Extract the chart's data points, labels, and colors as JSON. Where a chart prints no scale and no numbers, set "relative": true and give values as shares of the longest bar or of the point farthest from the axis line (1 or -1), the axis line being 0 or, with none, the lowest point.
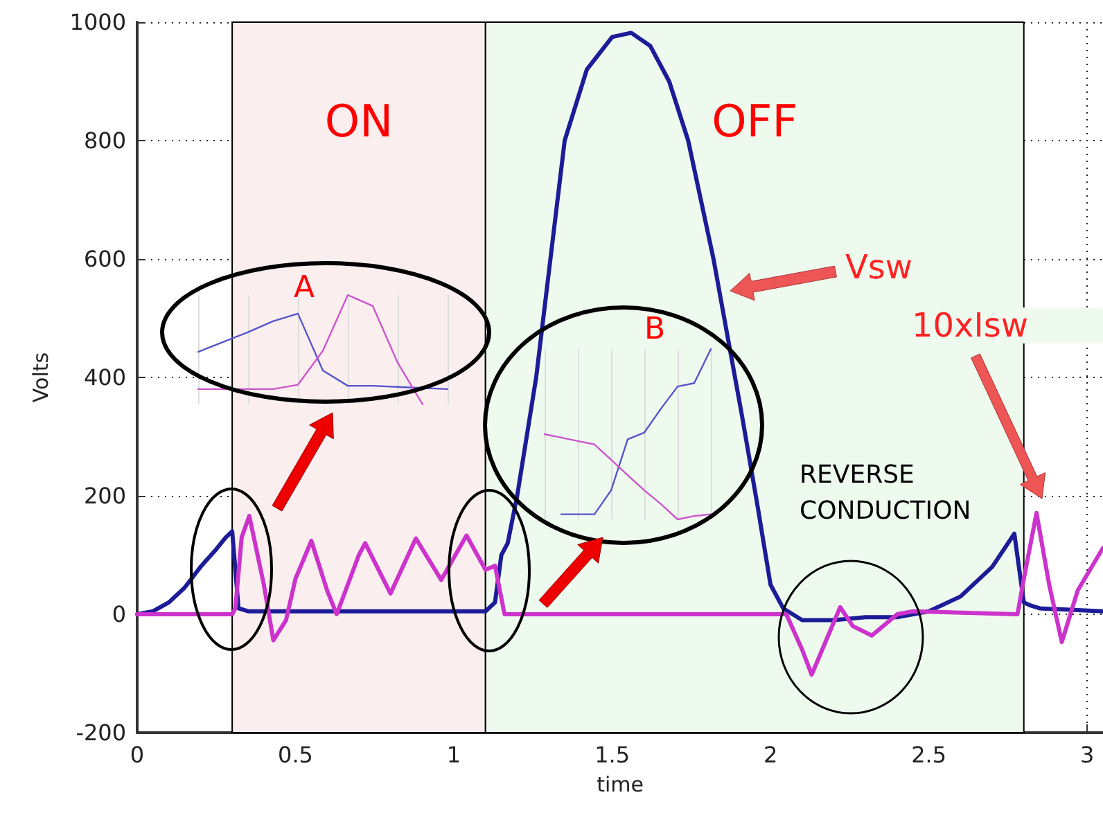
{
  "chart_data": [
    {
      "type": "line",
      "xlabel": "time",
      "ylabel": "Volts",
      "xlim": [
        0,
        3.05
      ],
      "xticks": [
        0,
        0.5,
        1,
        1.5,
        2,
        2.5,
        3
      ],
      "ylim": [
        -200,
        1000
      ],
      "yticks": [
        -200,
        0,
        200,
        400,
        600,
        800,
        1000
      ],
      "grid": true,
      "marker": "none",
      "line_style": "solid",
      "series": [
        {
          "color": "#1c1c99",
          "x": [
            0,
            0.05,
            0.1,
            0.15,
            0.2,
            0.25,
            0.28,
            0.3,
            0.32,
            0.35,
            0.5,
            0.7,
            0.9,
            1.1,
            1.13,
            1.15,
            1.17,
            1.2,
            1.26,
            1.305,
            1.35,
            1.42,
            1.5,
            1.56,
            1.62,
            1.68,
            1.74,
            1.82,
            1.91,
            1.96,
            2.0,
            2.04,
            2.07,
            2.1,
            2.2,
            2.3,
            2.4,
            2.5,
            2.6,
            2.7,
            2.77,
            2.8,
            2.82,
            2.85,
            3.05
          ],
          "values": [
            0,
            5,
            20,
            45,
            80,
            110,
            130,
            140,
            10,
            5,
            5,
            5,
            5,
            5,
            20,
            100,
            120,
            200,
            400,
            600,
            800,
            920,
            975,
            982,
            960,
            900,
            800,
            600,
            335,
            180,
            50,
            10,
            0,
            -10,
            -10,
            -5,
            -5,
            5,
            30,
            80,
            136,
            20,
            15,
            10,
            5
          ]
        },
        {
          "color": "#cc33cc",
          "x": [
            0,
            0.3,
            0.31,
            0.33,
            0.354,
            0.4,
            0.43,
            0.47,
            0.5,
            0.55,
            0.6,
            0.63,
            0.7,
            0.72,
            0.8,
            0.88,
            0.96,
            1.04,
            1.1,
            1.13,
            1.16,
            1.5,
            2.05,
            2.1,
            2.13,
            2.22,
            2.26,
            2.32,
            2.4,
            2.45,
            2.78,
            2.8,
            2.84,
            2.88,
            2.92,
            2.97,
            3.05
          ],
          "values": [
            0,
            0,
            10,
            130,
            166,
            50,
            -44,
            -10,
            60,
            124,
            40,
            0,
            100,
            120,
            35,
            128,
            58,
            133,
            75,
            82,
            0,
            0,
            0,
            -60,
            -102,
            12,
            -20,
            -36,
            0,
            5,
            0,
            60,
            171,
            50,
            -47,
            40,
            112
          ]
        }
      ],
      "bands": [
        {
          "axis": "x",
          "from": 0.3,
          "to": 1.1,
          "label": "ON",
          "color": "#fbeeee"
        },
        {
          "axis": "x",
          "from": 1.1,
          "to": 2.8,
          "label": "OFF",
          "color": "#effaef"
        }
      ],
      "annotations": [
        "Vsw",
        "10xIsw",
        "REVERSE CONDUCTION"
      ]
    },
    {
      "type": "line",
      "title": "A",
      "relative": true,
      "grid": true,
      "marker": "none",
      "categories": [
        null,
        null,
        null,
        null,
        null,
        null,
        null,
        null,
        null,
        null,
        null
      ],
      "series": [
        {
          "color": "#5555cc",
          "values": [
            0.48,
            0.57,
            0.66,
            0.76,
            0.83,
            0.31,
            0.17,
            0.17,
            0.16,
            0.15,
            0.14
          ]
        },
        {
          "color": "#cc55cc",
          "values": [
            0.14,
            0.14,
            0.14,
            0.14,
            0.18,
            0.49,
            1,
            0.9,
            0.38,
            0,
            null
          ]
        }
      ]
    },
    {
      "type": "line",
      "title": "B",
      "relative": true,
      "grid": true,
      "marker": "none",
      "categories": [
        null,
        null,
        null,
        null,
        null,
        null,
        null,
        null,
        null,
        null,
        null
      ],
      "series": [
        {
          "color": "#5555cc",
          "values": [
            null,
            0.03,
            0.03,
            0.03,
            0.17,
            0.47,
            0.51,
            0.65,
            0.78,
            0.8,
            1
          ]
        },
        {
          "color": "#cc55cc",
          "values": [
            0.5,
            0.48,
            0.46,
            0.44,
            0.35,
            0.26,
            0.17,
            0.09,
            0,
            0.02,
            0.03
          ]
        }
      ]
    }
  ]
}
